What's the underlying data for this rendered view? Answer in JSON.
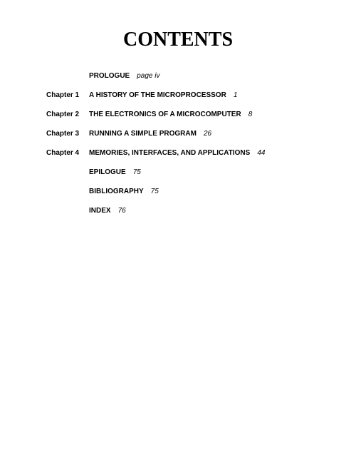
{
  "title": "CONTENTS",
  "entries": [
    {
      "chapter": "",
      "title": "PROLOGUE",
      "page": "page iv"
    },
    {
      "chapter": "Chapter 1",
      "title": "A HISTORY OF THE MICROPROCESSOR",
      "page": "1"
    },
    {
      "chapter": "Chapter 2",
      "title": "THE ELECTRONICS OF A MICROCOMPUTER",
      "page": "8"
    },
    {
      "chapter": "Chapter 3",
      "title": "RUNNING A SIMPLE PROGRAM",
      "page": "26"
    },
    {
      "chapter": "Chapter 4",
      "title": "MEMORIES, INTERFACES, AND APPLICATIONS",
      "page": "44"
    },
    {
      "chapter": "",
      "title": "EPILOGUE",
      "page": "75"
    },
    {
      "chapter": "",
      "title": "BIBLIOGRAPHY",
      "page": "75"
    },
    {
      "chapter": "",
      "title": "INDEX",
      "page": "76"
    }
  ],
  "styles": {
    "title_fontsize": 28,
    "entry_fontsize": 10,
    "background_color": "#ffffff",
    "text_color": "#000000"
  }
}
